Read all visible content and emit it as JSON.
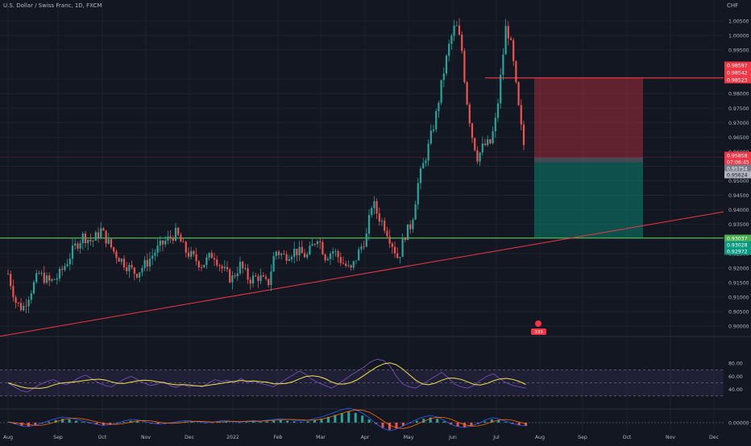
{
  "header": {
    "symbol_title": "U.S. Dollar / Swiss Franc, 1D, FXCM",
    "currency": "CHF"
  },
  "chart_data": {
    "type": "candlestick",
    "x_ticks": [
      "Aug",
      "Sep",
      "Oct",
      "Nov",
      "Dec",
      "2022",
      "Feb",
      "Mar",
      "Apr",
      "May",
      "Jun",
      "Jul",
      "Aug",
      "Sep",
      "Oct",
      "Nov",
      "Dec"
    ],
    "y_ticks": [
      "1.00500",
      "1.00000",
      "0.99500",
      "0.98500",
      "0.98000",
      "0.97500",
      "0.97000",
      "0.96500",
      "0.96000",
      "0.95500",
      "0.95000",
      "0.94500",
      "0.94000",
      "0.93500",
      "0.93000",
      "0.92500",
      "0.92000",
      "0.91500",
      "0.91000",
      "0.90500",
      "0.90000"
    ],
    "ylim": [
      0.8975,
      1.007
    ],
    "price_path": [
      [
        "2021-08-01",
        0.918
      ],
      [
        "2021-08-06",
        0.908
      ],
      [
        "2021-08-10",
        0.906
      ],
      [
        "2021-08-15",
        0.912
      ],
      [
        "2021-08-20",
        0.918
      ],
      [
        "2021-08-27",
        0.915
      ],
      [
        "2021-09-01",
        0.917
      ],
      [
        "2021-09-07",
        0.922
      ],
      [
        "2021-09-12",
        0.927
      ],
      [
        "2021-09-18",
        0.931
      ],
      [
        "2021-09-24",
        0.929
      ],
      [
        "2021-09-30",
        0.933
      ],
      [
        "2021-10-05",
        0.929
      ],
      [
        "2021-10-10",
        0.925
      ],
      [
        "2021-10-18",
        0.921
      ],
      [
        "2021-10-25",
        0.918
      ],
      [
        "2021-11-02",
        0.922
      ],
      [
        "2021-11-08",
        0.926
      ],
      [
        "2021-11-14",
        0.929
      ],
      [
        "2021-11-22",
        0.932
      ],
      [
        "2021-11-28",
        0.926
      ],
      [
        "2021-12-05",
        0.923
      ],
      [
        "2021-12-10",
        0.921
      ],
      [
        "2021-12-18",
        0.925
      ],
      [
        "2021-12-24",
        0.92
      ],
      [
        "2021-12-31",
        0.916
      ],
      [
        "2022-01-06",
        0.921
      ],
      [
        "2022-01-12",
        0.916
      ],
      [
        "2022-01-19",
        0.917
      ],
      [
        "2022-01-25",
        0.914
      ],
      [
        "2022-01-30",
        0.926
      ],
      [
        "2022-02-05",
        0.924
      ],
      [
        "2022-02-12",
        0.926
      ],
      [
        "2022-02-20",
        0.924
      ],
      [
        "2022-02-27",
        0.931
      ],
      [
        "2022-03-04",
        0.924
      ],
      [
        "2022-03-10",
        0.926
      ],
      [
        "2022-03-16",
        0.922
      ],
      [
        "2022-03-22",
        0.919
      ],
      [
        "2022-03-28",
        0.926
      ],
      [
        "2022-04-02",
        0.931
      ],
      [
        "2022-04-06",
        0.943
      ],
      [
        "2022-04-10",
        0.938
      ],
      [
        "2022-04-15",
        0.934
      ],
      [
        "2022-04-20",
        0.928
      ],
      [
        "2022-04-24",
        0.923
      ],
      [
        "2022-04-28",
        0.931
      ],
      [
        "2022-05-03",
        0.935
      ],
      [
        "2022-05-08",
        0.95
      ],
      [
        "2022-05-14",
        0.96
      ],
      [
        "2022-05-20",
        0.972
      ],
      [
        "2022-05-25",
        0.986
      ],
      [
        "2022-05-30",
        0.998
      ],
      [
        "2022-06-03",
        1.004
      ],
      [
        "2022-06-07",
        0.996
      ],
      [
        "2022-06-10",
        0.98
      ],
      [
        "2022-06-14",
        0.966
      ],
      [
        "2022-06-18",
        0.958
      ],
      [
        "2022-06-22",
        0.962
      ],
      [
        "2022-06-27",
        0.963
      ],
      [
        "2022-07-01",
        0.972
      ],
      [
        "2022-07-05",
        0.99
      ],
      [
        "2022-07-08",
        1.004
      ],
      [
        "2022-07-12",
        0.995
      ],
      [
        "2022-07-16",
        0.978
      ],
      [
        "2022-07-20",
        0.963
      ],
      [
        "2022-07-25",
        0.957
      ],
      [
        "2022-07-29",
        0.954
      ],
      [
        "2022-08-02",
        0.96
      ],
      [
        "2022-08-06",
        0.972
      ],
      [
        "2022-08-10",
        0.981
      ],
      [
        "2022-08-14",
        0.976
      ],
      [
        "2022-08-18",
        0.966
      ],
      [
        "2022-08-24",
        0.958
      ],
      [
        "2022-08-29",
        0.955
      ]
    ],
    "rsi": {
      "y_ticks": [
        "80.00",
        "60.00",
        "40.00"
      ],
      "bands": [
        70,
        50,
        30
      ],
      "values": [
        50,
        44,
        38,
        36,
        42,
        48,
        52,
        55,
        50,
        47,
        52,
        58,
        62,
        56,
        50,
        46,
        44,
        50,
        56,
        60,
        55,
        50,
        46,
        48,
        52,
        46,
        43,
        48,
        44,
        46,
        44,
        50,
        55,
        52,
        54,
        50,
        57,
        50,
        53,
        49,
        47,
        44,
        50,
        56,
        62,
        68,
        63,
        55,
        50,
        46,
        42,
        48,
        55,
        62,
        68,
        74,
        82,
        86,
        84,
        76,
        60,
        48,
        44,
        42,
        48,
        54,
        60,
        66,
        58,
        48,
        44,
        42,
        46,
        54,
        60,
        64,
        56,
        50,
        46,
        44,
        42
      ]
    },
    "macd": {
      "y_ticks": [
        "0.00000"
      ],
      "hist": [
        0,
        -0.0005,
        -0.001,
        -0.0012,
        -0.0008,
        -0.0003,
        0.0003,
        0.0008,
        0.0012,
        0.001,
        0.0006,
        0.0002,
        -0.0002,
        -0.0006,
        -0.0009,
        -0.0007,
        -0.0003,
        0.0002,
        0.0006,
        0.0005,
        0.0001,
        -0.0003,
        -0.0005,
        -0.0004,
        -0.0002,
        0.0001,
        0.0003,
        0.0002,
        0,
        -0.0002,
        -0.0001,
        0.0002,
        0.0003,
        0.0001,
        -0.0001,
        0.0002,
        0.0003,
        0.0002,
        0.0004,
        0.0006,
        0.0008,
        0.0006,
        0.0004,
        0.0002,
        0.0004,
        0.0008,
        0.0012,
        0.0018,
        0.0024,
        0.003,
        0.0034,
        0.003,
        0.0022,
        0.001,
        -0.0004,
        -0.0016,
        -0.0022,
        -0.0018,
        -0.001,
        -0.0002,
        0.0006,
        0.0012,
        0.0016,
        0.0012,
        0.0004,
        -0.0006,
        -0.0012,
        -0.0014,
        -0.001,
        -0.0004,
        0.0004,
        0.001,
        0.0008,
        0.0002,
        -0.0004,
        -0.0008,
        -0.001
      ]
    },
    "position": {
      "type": "short",
      "stop_prices": [
        "0.98587",
        "0.98542",
        "0.98523"
      ],
      "entry_prices": [
        "0.95858",
        "07:06:45"
      ],
      "mid_prices": [
        "0.95754",
        "0.95624"
      ],
      "target_prices": [
        "0.93037",
        "0.93028",
        "0.92972"
      ]
    },
    "event_badge_label": "333",
    "colors": {
      "up": "#26a69a",
      "down": "#ef5350",
      "stop_zone": "#f23645",
      "target_zone": "#089981",
      "trendline": "#f23645",
      "horizontal_support": "#4caf50",
      "rsi_line": "#7e57c2",
      "rsi_ma": "#f5e24e",
      "macd_line": "#2962ff",
      "signal_line": "#ff6d00"
    }
  }
}
